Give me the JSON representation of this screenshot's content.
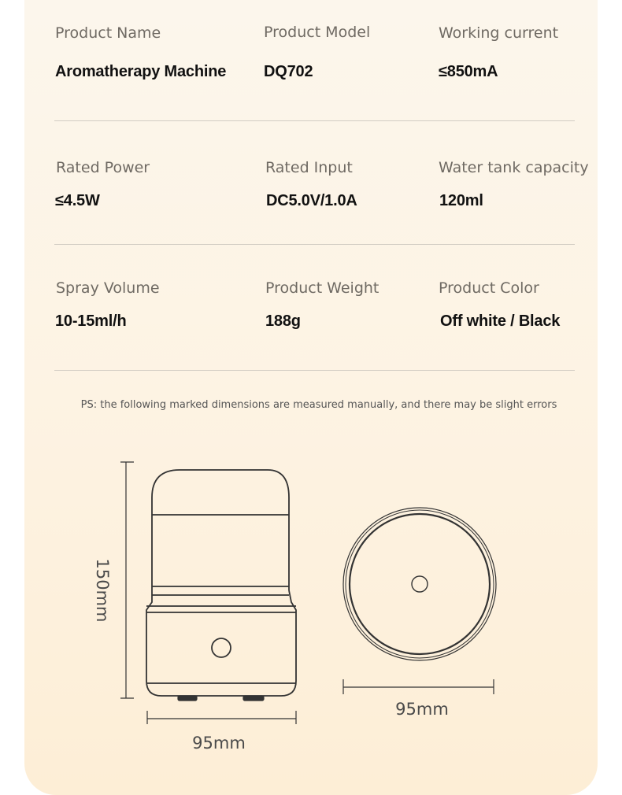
{
  "specs": [
    {
      "label": "Product Name",
      "value": "Aromatherapy Machine"
    },
    {
      "label": "Product Model",
      "value": "DQ702"
    },
    {
      "label": "Working current",
      "value": "≤850mA"
    },
    {
      "label": "Rated Power",
      "value": "≤4.5W"
    },
    {
      "label": "Rated Input",
      "value": "DC5.0V/1.0A"
    },
    {
      "label": "Water tank capacity",
      "value": "120ml"
    },
    {
      "label": "Spray Volume",
      "value": "10-15ml/h"
    },
    {
      "label": "Product Weight",
      "value": "188g"
    },
    {
      "label": "Product Color",
      "value": "Off white / Black"
    }
  ],
  "note": "PS: the following marked dimensions are measured manually, and there may be slight errors",
  "dimensions": {
    "height": "150mm",
    "width_side": "95mm",
    "width_top": "95mm"
  }
}
